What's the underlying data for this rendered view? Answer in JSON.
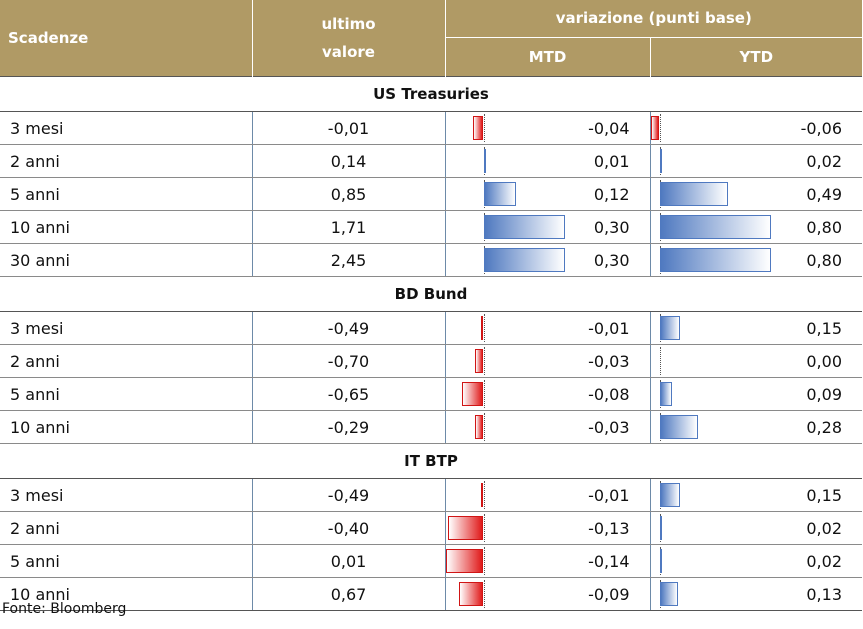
{
  "header": {
    "maturities": "Scadenze",
    "last_line1": "ultimo",
    "last_line2": "valore",
    "change": "variazione (punti base)",
    "mtd": "MTD",
    "ytd": "YTD"
  },
  "colors": {
    "header_bg": "#b09a65",
    "positive": "#4f79c0",
    "negative": "#e01b1b"
  },
  "sections": [
    {
      "title": "US Treasuries",
      "rows": [
        {
          "maturity": "3 mesi",
          "last": "-0,01",
          "mtd": "-0,04",
          "ytd": "-0,06",
          "mtd_v": -0.04,
          "ytd_v": -0.06
        },
        {
          "maturity": "2 anni",
          "last": "0,14",
          "mtd": "0,01",
          "ytd": "0,02",
          "mtd_v": 0.01,
          "ytd_v": 0.02
        },
        {
          "maturity": "5 anni",
          "last": "0,85",
          "mtd": "0,12",
          "ytd": "0,49",
          "mtd_v": 0.12,
          "ytd_v": 0.49
        },
        {
          "maturity": "10 anni",
          "last": "1,71",
          "mtd": "0,30",
          "ytd": "0,80",
          "mtd_v": 0.3,
          "ytd_v": 0.8
        },
        {
          "maturity": "30 anni",
          "last": "2,45",
          "mtd": "0,30",
          "ytd": "0,80",
          "mtd_v": 0.3,
          "ytd_v": 0.8
        }
      ]
    },
    {
      "title": "BD Bund",
      "rows": [
        {
          "maturity": "3 mesi",
          "last": "-0,49",
          "mtd": "-0,01",
          "ytd": "0,15",
          "mtd_v": -0.01,
          "ytd_v": 0.15
        },
        {
          "maturity": "2 anni",
          "last": "-0,70",
          "mtd": "-0,03",
          "ytd": "0,00",
          "mtd_v": -0.03,
          "ytd_v": 0.0
        },
        {
          "maturity": "5 anni",
          "last": "-0,65",
          "mtd": "-0,08",
          "ytd": "0,09",
          "mtd_v": -0.08,
          "ytd_v": 0.09
        },
        {
          "maturity": "10 anni",
          "last": "-0,29",
          "mtd": "-0,03",
          "ytd": "0,28",
          "mtd_v": -0.03,
          "ytd_v": 0.28
        }
      ]
    },
    {
      "title": "IT BTP",
      "rows": [
        {
          "maturity": "3 mesi",
          "last": "-0,49",
          "mtd": "-0,01",
          "ytd": "0,15",
          "mtd_v": -0.01,
          "ytd_v": 0.15
        },
        {
          "maturity": "2 anni",
          "last": "-0,40",
          "mtd": "-0,13",
          "ytd": "0,02",
          "mtd_v": -0.13,
          "ytd_v": 0.02
        },
        {
          "maturity": "5 anni",
          "last": "0,01",
          "mtd": "-0,14",
          "ytd": "0,02",
          "mtd_v": -0.14,
          "ytd_v": 0.02
        },
        {
          "maturity": "10 anni",
          "last": "0,67",
          "mtd": "-0,09",
          "ytd": "0,13",
          "mtd_v": -0.09,
          "ytd_v": 0.13
        }
      ]
    }
  ],
  "source": "Fonte: Bloomberg"
}
